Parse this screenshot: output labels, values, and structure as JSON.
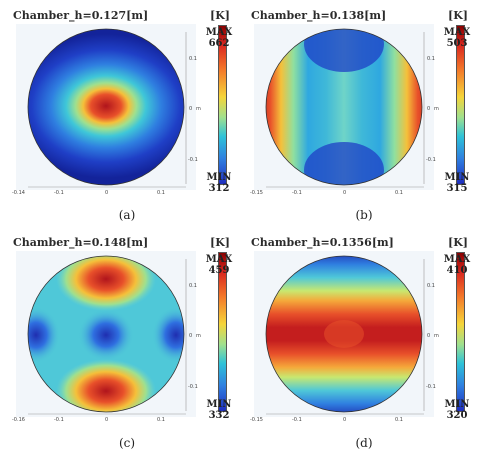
{
  "panels": [
    {
      "id": "a",
      "title": "Chamber_h=0.127[m]",
      "unit": "[K]",
      "max_label": "MAX",
      "max_value": "662",
      "min_label": "MIN",
      "min_value": "312",
      "caption": "(a)",
      "pattern": "center-hot",
      "yticks": [
        "0.1",
        "0",
        "-0.1"
      ],
      "xticks": [
        "-0.14",
        "-0.1",
        "0",
        "0.1"
      ],
      "axis_letter": "m"
    },
    {
      "id": "b",
      "title": "Chamber_h=0.138[m]",
      "unit": "[K]",
      "max_label": "MAX",
      "max_value": "503",
      "min_label": "MIN",
      "min_value": "315",
      "caption": "(b)",
      "pattern": "sides-hot",
      "yticks": [
        "0.1",
        "0",
        "-0.1"
      ],
      "xticks": [
        "-0.15",
        "-0.1",
        "0",
        "0.1"
      ],
      "axis_letter": "m"
    },
    {
      "id": "c",
      "title": "Chamber_h=0.148[m]",
      "unit": "[K]",
      "max_label": "MAX",
      "max_value": "459",
      "min_label": "MIN",
      "min_value": "332",
      "caption": "(c)",
      "pattern": "top-bottom-lobes",
      "yticks": [
        "0.1",
        "0",
        "-0.1"
      ],
      "xticks": [
        "-0.16",
        "-0.1",
        "0",
        "0.1"
      ],
      "axis_letter": "m"
    },
    {
      "id": "d",
      "title": "Chamber_h=0.1356[m]",
      "unit": "[K]",
      "max_label": "MAX",
      "max_value": "410",
      "min_label": "MIN",
      "min_value": "320",
      "caption": "(d)",
      "pattern": "horizontal-band",
      "yticks": [
        "0.1",
        "0",
        "-0.1"
      ],
      "xticks": [
        "-0.15",
        "-0.1",
        "0",
        "0.1"
      ],
      "axis_letter": "m"
    }
  ],
  "colormap": [
    "#0d1b8f",
    "#1f4fd6",
    "#2f8fe8",
    "#3fc7d8",
    "#8fe0a0",
    "#e8e85a",
    "#f5a83a",
    "#e8502a",
    "#b0141c"
  ]
}
